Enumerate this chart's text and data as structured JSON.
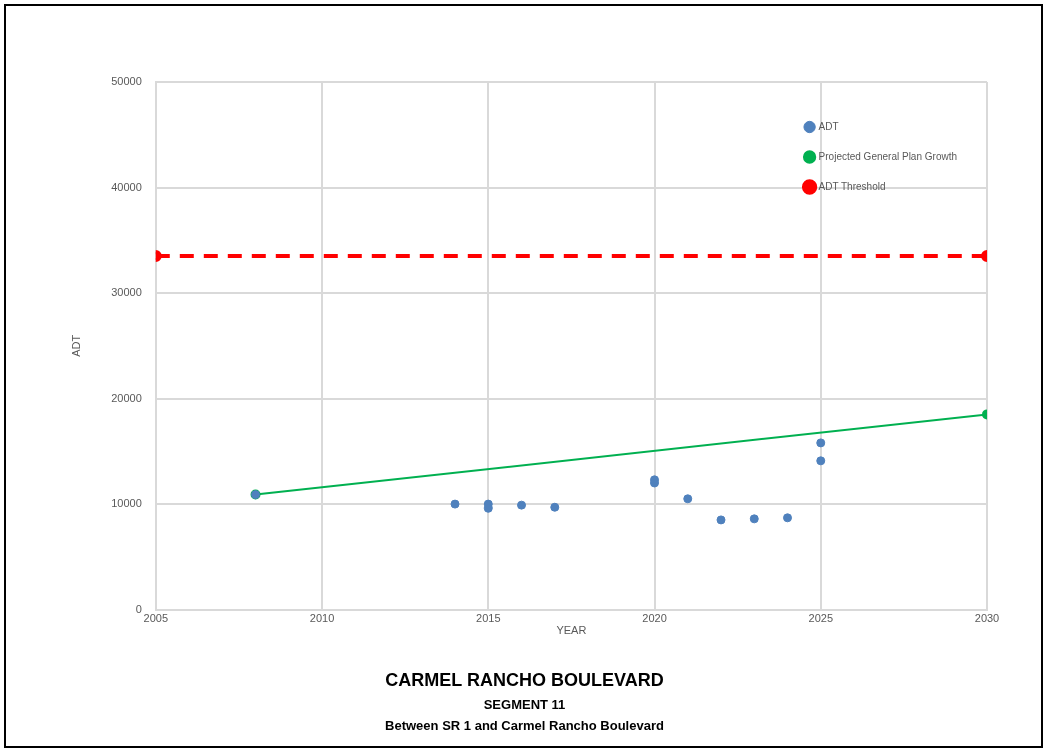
{
  "chart_data": {
    "type": "scatter",
    "title": "CARMEL RANCHO BOULEVARD",
    "subtitle": "SEGMENT 11",
    "annotations": [
      "Between SR 1 and Carmel Rancho Boulevard"
    ],
    "xlabel": "YEAR",
    "ylabel": "ADT",
    "xlim": [
      2005,
      2030
    ],
    "xticks": [
      2005,
      2010,
      2015,
      2020,
      2025,
      2030
    ],
    "ylim": [
      0,
      50000
    ],
    "yticks": [
      0,
      10000,
      20000,
      30000,
      40000,
      50000
    ],
    "grid": true,
    "legend": "top right",
    "marker": "circle",
    "series": [
      {
        "name": "ADT",
        "type": "scatter",
        "color": "#4f81bd",
        "x": [
          2008,
          2014,
          2015,
          2015,
          2016,
          2017,
          2020,
          2020,
          2021,
          2022,
          2023,
          2024,
          2025,
          2025
        ],
        "values": [
          10900,
          10000,
          10000,
          9600,
          9900,
          9700,
          12300,
          12000,
          10500,
          8500,
          8600,
          8700,
          15800,
          14100
        ]
      },
      {
        "name": "Projected General Plan Growth",
        "type": "line",
        "color": "#00b050",
        "line_style": "solid",
        "x": [
          2008,
          2030
        ],
        "values": [
          10900,
          18500
        ]
      },
      {
        "name": "ADT Threshold",
        "type": "line",
        "color": "#ff0000",
        "line_style": "dashed",
        "x": [
          2005,
          2030
        ],
        "values": [
          33500,
          33500
        ]
      }
    ]
  }
}
